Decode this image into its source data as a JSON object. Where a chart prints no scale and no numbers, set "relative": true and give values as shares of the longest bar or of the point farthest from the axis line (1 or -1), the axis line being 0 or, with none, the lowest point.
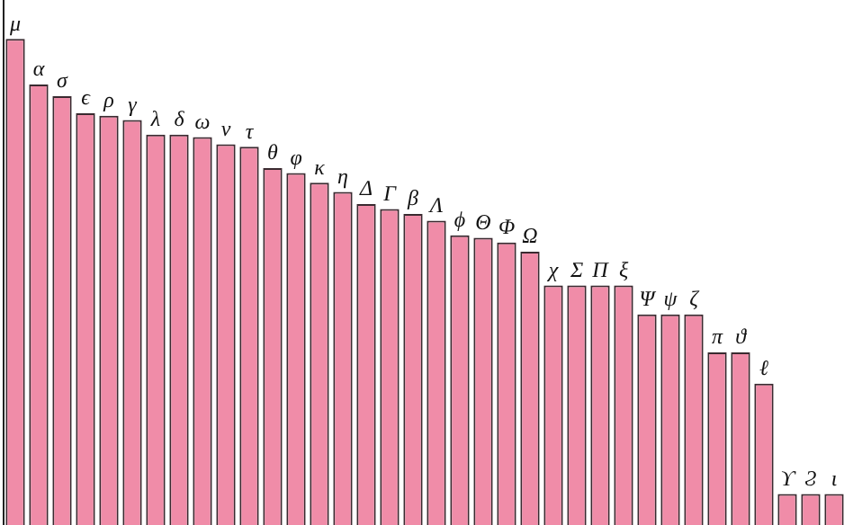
{
  "chart_data": {
    "type": "bar",
    "relative": true,
    "color": "#f08ca8",
    "categories": [
      "μ",
      "α",
      "σ",
      "ϵ",
      "ρ",
      "γ",
      "λ",
      "δ",
      "ω",
      "ν",
      "τ",
      "θ",
      "φ",
      "κ",
      "η",
      "Δ",
      "Γ",
      "β",
      "Λ",
      "ϕ",
      "Θ",
      "Φ",
      "Ω",
      "χ",
      "Σ",
      "Π",
      "ξ",
      "Ψ",
      "ψ",
      "ζ",
      "π",
      "ϑ",
      "ℓ",
      "ϒ",
      "Ϩ",
      "ι"
    ],
    "values": [
      1,
      0.906,
      0.882,
      0.847,
      0.842,
      0.833,
      0.803,
      0.803,
      0.798,
      0.783,
      0.778,
      0.734,
      0.724,
      0.704,
      0.685,
      0.66,
      0.65,
      0.64,
      0.626,
      0.596,
      0.591,
      0.581,
      0.562,
      0.493,
      0.493,
      0.493,
      0.493,
      0.433,
      0.433,
      0.433,
      0.355,
      0.355,
      0.291,
      0.064,
      0.064,
      0.064
    ],
    "grid": false,
    "legend": false
  }
}
